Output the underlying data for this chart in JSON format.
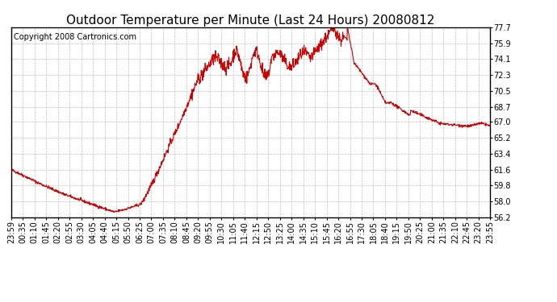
{
  "title": "Outdoor Temperature per Minute (Last 24 Hours) 20080812",
  "copyright": "Copyright 2008 Cartronics.com",
  "line_color": "#cc0000",
  "background_color": "#ffffff",
  "plot_background": "#ffffff",
  "grid_color": "#b0b0b0",
  "ytick_labels": [
    "56.2",
    "58.0",
    "59.8",
    "61.6",
    "63.4",
    "65.2",
    "67.0",
    "68.7",
    "70.5",
    "72.3",
    "74.1",
    "75.9",
    "77.7"
  ],
  "yticks": [
    56.2,
    58.0,
    59.8,
    61.6,
    63.4,
    65.2,
    67.0,
    68.7,
    70.5,
    72.3,
    74.1,
    75.9,
    77.7
  ],
  "xtick_labels": [
    "23:59",
    "00:35",
    "01:10",
    "01:45",
    "02:20",
    "02:55",
    "03:30",
    "04:05",
    "04:40",
    "05:15",
    "05:50",
    "06:25",
    "07:00",
    "07:35",
    "08:10",
    "08:45",
    "09:20",
    "09:55",
    "10:30",
    "11:05",
    "11:40",
    "12:15",
    "12:50",
    "13:25",
    "14:00",
    "14:35",
    "15:10",
    "15:45",
    "16:20",
    "16:55",
    "17:30",
    "18:05",
    "18:40",
    "19:15",
    "19:50",
    "20:25",
    "21:00",
    "21:35",
    "22:10",
    "22:45",
    "23:20",
    "23:55"
  ],
  "ylim": [
    56.2,
    77.7
  ],
  "line_width": 0.8,
  "title_fontsize": 11,
  "tick_fontsize": 7,
  "copyright_fontsize": 7
}
